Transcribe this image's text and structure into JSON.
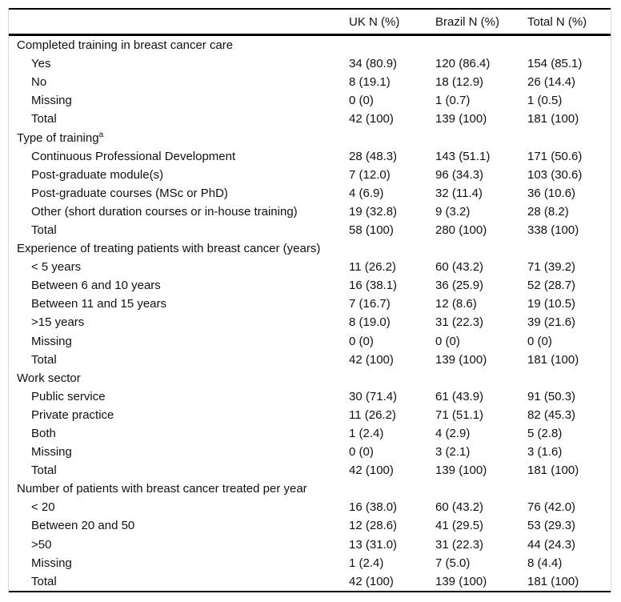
{
  "colors": {
    "background": "#ffffff",
    "rule": "#000000",
    "frame": "#d9d9d9",
    "text": "#111111"
  },
  "table": {
    "header": {
      "col_label": "",
      "col_uk": "UK N (%)",
      "col_brazil": "Brazil N (%)",
      "col_total": "Total N (%)"
    },
    "sections": [
      {
        "title": "Completed training in breast cancer care",
        "note": "",
        "rows": [
          {
            "label": "Yes",
            "uk": "34 (80.9)",
            "brazil": "120 (86.4)",
            "total": "154 (85.1)"
          },
          {
            "label": "No",
            "uk": "8 (19.1)",
            "brazil": "18 (12.9)",
            "total": "26 (14.4)"
          },
          {
            "label": "Missing",
            "uk": "0 (0)",
            "brazil": "1 (0.7)",
            "total": "1 (0.5)"
          },
          {
            "label": "Total",
            "uk": "42 (100)",
            "brazil": "139 (100)",
            "total": "181 (100)"
          }
        ]
      },
      {
        "title": "Type of training",
        "note": "a",
        "rows": [
          {
            "label": "Continuous Professional Development",
            "uk": "28 (48.3)",
            "brazil": "143 (51.1)",
            "total": "171 (50.6)"
          },
          {
            "label": "Post-graduate module(s)",
            "uk": "7 (12.0)",
            "brazil": "96 (34.3)",
            "total": "103 (30.6)"
          },
          {
            "label": "Post-graduate courses (MSc or PhD)",
            "uk": "4 (6.9)",
            "brazil": "32 (11.4)",
            "total": "36 (10.6)"
          },
          {
            "label": "Other (short duration courses or in-house training)",
            "uk": "19 (32.8)",
            "brazil": "9 (3.2)",
            "total": "28 (8.2)"
          },
          {
            "label": "Total",
            "uk": "58 (100)",
            "brazil": "280 (100)",
            "total": "338 (100)"
          }
        ]
      },
      {
        "title": "Experience of treating patients with breast cancer (years)",
        "note": "",
        "rows": [
          {
            "label": "< 5 years",
            "uk": "11 (26.2)",
            "brazil": "60 (43.2)",
            "total": "71 (39.2)"
          },
          {
            "label": "Between 6 and 10 years",
            "uk": "16 (38.1)",
            "brazil": "36 (25.9)",
            "total": "52 (28.7)"
          },
          {
            "label": "Between 11 and 15 years",
            "uk": "7 (16.7)",
            "brazil": "12 (8.6)",
            "total": "19 (10.5)"
          },
          {
            "label": ">15 years",
            "uk": "8 (19.0)",
            "brazil": "31 (22.3)",
            "total": "39 (21.6)"
          },
          {
            "label": "Missing",
            "uk": "0 (0)",
            "brazil": "0 (0)",
            "total": "0 (0)"
          },
          {
            "label": "Total",
            "uk": "42 (100)",
            "brazil": "139 (100)",
            "total": "181 (100)"
          }
        ]
      },
      {
        "title": "Work sector",
        "note": "",
        "rows": [
          {
            "label": "Public service",
            "uk": "30 (71.4)",
            "brazil": "61 (43.9)",
            "total": "91 (50.3)"
          },
          {
            "label": "Private practice",
            "uk": "11 (26.2)",
            "brazil": "71 (51.1)",
            "total": "82 (45.3)"
          },
          {
            "label": "Both",
            "uk": "1 (2.4)",
            "brazil": "4 (2.9)",
            "total": "5 (2.8)"
          },
          {
            "label": "Missing",
            "uk": "0 (0)",
            "brazil": "3 (2.1)",
            "total": "3 (1.6)"
          },
          {
            "label": "Total",
            "uk": "42 (100)",
            "brazil": "139 (100)",
            "total": "181 (100)"
          }
        ]
      },
      {
        "title": "Number of patients with breast cancer treated per year",
        "note": "",
        "rows": [
          {
            "label": "< 20",
            "uk": "16 (38.0)",
            "brazil": "60 (43.2)",
            "total": "76 (42.0)"
          },
          {
            "label": "Between 20 and 50",
            "uk": "12 (28.6)",
            "brazil": "41 (29.5)",
            "total": "53 (29.3)"
          },
          {
            "label": ">50",
            "uk": "13 (31.0)",
            "brazil": "31 (22.3)",
            "total": "44 (24.3)"
          },
          {
            "label": "Missing",
            "uk": "1 (2.4)",
            "brazil": "7 (5.0)",
            "total": "8 (4.4)"
          },
          {
            "label": "Total",
            "uk": "42 (100)",
            "brazil": "139 (100)",
            "total": "181 (100)"
          }
        ]
      }
    ]
  }
}
